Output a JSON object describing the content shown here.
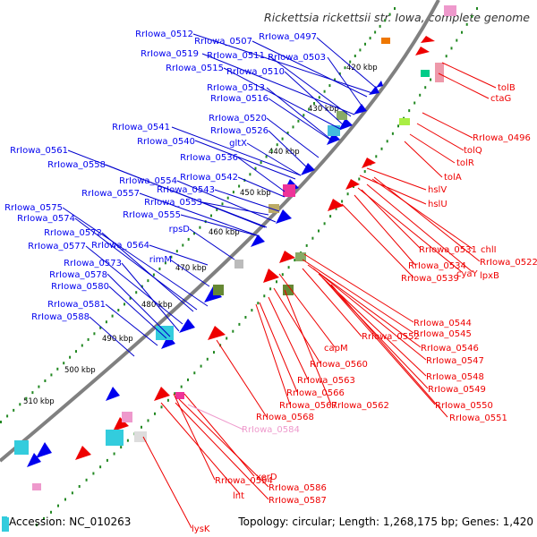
{
  "title": "Rickettsia rickettsii str. Iowa, complete genome",
  "footer": {
    "accession": "Accession: NC_010263",
    "topology": "Topology: circular; Length: 1,268,175 bp; Genes: 1,420"
  },
  "colors": {
    "forward_cds": "#0000ee",
    "reverse_cds": "#ee0000",
    "pseudo_gene": "#ee99cc",
    "backbone": "#808080",
    "tick_dots": "#228822"
  },
  "ticks": [
    "420 kbp",
    "430 kbp",
    "440 kbp",
    "450 kbp",
    "460 kbp",
    "470 kbp",
    "480 kbp",
    "490 kbp",
    "500 kbp",
    "510 kbp"
  ],
  "left_labels": [
    "RrIowa_0512",
    "RrIowa_0507",
    "RrIowa_0497",
    "RrIowa_0519",
    "RrIowa_0511",
    "RrIowa_0503",
    "RrIowa_0515",
    "RrIowa_0510",
    "RrIowa_0513",
    "RrIowa_0516",
    "RrIowa_0520",
    "RrIowa_0541",
    "RrIowa_0526",
    "RrIowa_0540",
    "gltX",
    "RrIowa_0561",
    "RrIowa_0536",
    "RrIowa_0558",
    "RrIowa_0554",
    "RrIowa_0542",
    "RrIowa_0557",
    "RrIowa_0543",
    "RrIowa_0553",
    "RrIowa_0575",
    "RrIowa_0555",
    "RrIowa_0574",
    "rpsD",
    "RrIowa_0572",
    "RrIowa_0577",
    "RrIowa_0564",
    "rimM",
    "RrIowa_0573",
    "RrIowa_0578",
    "RrIowa_0580",
    "RrIowa_0581",
    "RrIowa_0588"
  ],
  "right_labels": [
    "tolB",
    "ctaG",
    "RrIowa_0496",
    "tolQ",
    "tolR",
    "tolA",
    "hslV",
    "hslU",
    "chlI",
    "RrIowa_0531",
    "RrIowa_0522",
    "RrIowa_0534",
    "cyaY",
    "lpxB",
    "RrIowa_0539",
    "RrIowa_0544",
    "RrIowa_0545",
    "RrIowa_0552",
    "RrIowa_0546",
    "capM",
    "RrIowa_0547",
    "RrIowa_0560",
    "RrIowa_0548",
    "RrIowa_0563",
    "RrIowa_0549",
    "RrIowa_0566",
    "RrIowa_0550",
    "RrIowa_0567",
    "RrIowa_0562",
    "RrIowa_0551",
    "RrIowa_0568",
    "RrIowa_0594",
    "xerD",
    "lnt",
    "RrIowa_0586",
    "RrIowa_0587",
    "lysK"
  ],
  "pseudo_labels": [
    "RrIowa_0584"
  ]
}
